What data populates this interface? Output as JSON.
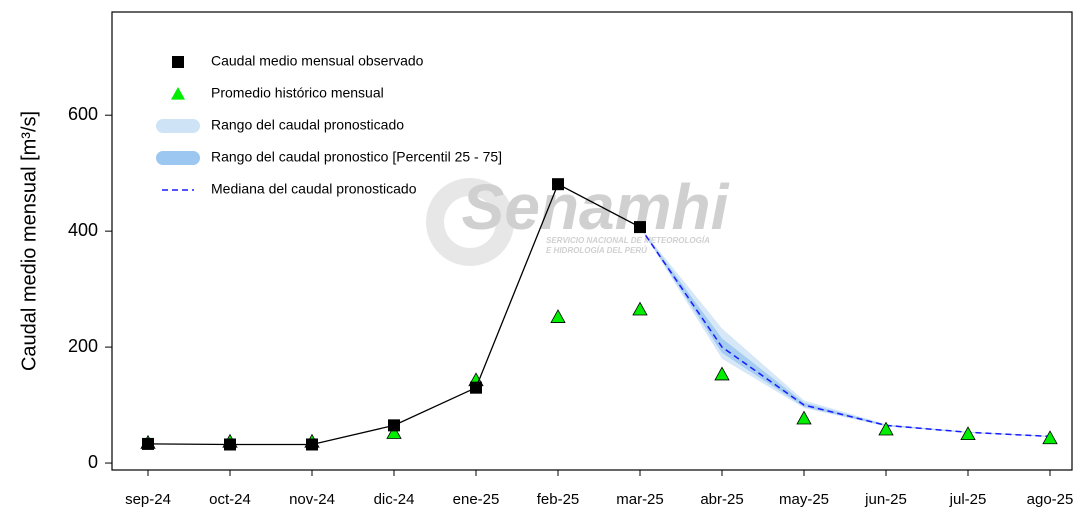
{
  "chart_data": {
    "type": "line",
    "y_label": "Caudal medio mensual [m³/s]",
    "watermark": "Senamhi",
    "watermark_subtitle": [
      "SERVICIO NACIONAL DE METEOROLOGÍA",
      "E HIDROLOGÍA DEL PERÚ"
    ],
    "categories": [
      "sep-24",
      "oct-24",
      "nov-24",
      "dic-24",
      "ene-25",
      "feb-25",
      "mar-25",
      "abr-25",
      "may-25",
      "jun-25",
      "jul-25",
      "ago-25"
    ],
    "ylim": [
      -12,
      778
    ],
    "yticks": [
      0,
      200,
      400,
      600
    ],
    "grid": false,
    "legend": "upper left",
    "series": [
      {
        "name": "Caudal medio mensual observado",
        "color": "#000000",
        "mark": "square",
        "values": [
          33,
          32,
          32,
          65,
          130,
          481,
          407,
          null,
          null,
          null,
          null,
          null
        ]
      },
      {
        "name": "Promedio histórico mensual",
        "color": "#00ee00",
        "mark": "triangle",
        "values": [
          35,
          37,
          37,
          52,
          143,
          252,
          265,
          153,
          77,
          58,
          50,
          43
        ]
      },
      {
        "name": "Rango del caudal pronosticado",
        "color": "#cfe3f7",
        "mark": "band",
        "low": [
          null,
          null,
          null,
          null,
          null,
          null,
          407,
          180,
          95,
          63,
          52,
          45
        ],
        "high": [
          null,
          null,
          null,
          null,
          null,
          null,
          407,
          232,
          108,
          67,
          54,
          47
        ]
      },
      {
        "name": "Rango del caudal pronostico [Percentil 25 - 75]",
        "color": "#9cc7f0",
        "mark": "band",
        "low": [
          null,
          null,
          null,
          null,
          null,
          null,
          407,
          190,
          97,
          64,
          52.5,
          45.5
        ],
        "high": [
          null,
          null,
          null,
          null,
          null,
          null,
          407,
          215,
          104,
          66,
          53.5,
          46.5
        ]
      },
      {
        "name": "Mediana del caudal pronosticado",
        "color": "#1a1aff",
        "mark": "dashed",
        "values": [
          null,
          null,
          null,
          null,
          null,
          null,
          407,
          200,
          100,
          65,
          53,
          46
        ]
      }
    ]
  }
}
